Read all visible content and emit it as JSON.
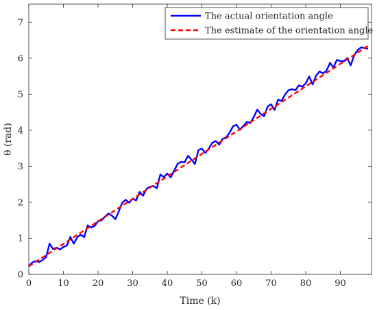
{
  "chart_data": {
    "type": "line",
    "title": "",
    "xlabel": "Time (k)",
    "ylabel": "θ (rad)",
    "xlim": [
      0,
      99
    ],
    "ylim": [
      0,
      7.5
    ],
    "xticks": [
      0,
      10,
      20,
      30,
      40,
      50,
      60,
      70,
      80,
      90
    ],
    "yticks": [
      0,
      1,
      2,
      3,
      4,
      5,
      6,
      7
    ],
    "grid": false,
    "legend_position": "top-right",
    "series": [
      {
        "name": "The actual orientation angle",
        "color": "#0000ff",
        "style": "solid",
        "x": [
          0,
          1,
          2,
          3,
          4,
          5,
          6,
          7,
          8,
          9,
          10,
          11,
          12,
          13,
          14,
          15,
          16,
          17,
          18,
          19,
          20,
          21,
          22,
          23,
          24,
          25,
          26,
          27,
          28,
          29,
          30,
          31,
          32,
          33,
          34,
          35,
          36,
          37,
          38,
          39,
          40,
          41,
          42,
          43,
          44,
          45,
          46,
          47,
          48,
          49,
          50,
          51,
          52,
          53,
          54,
          55,
          56,
          57,
          58,
          59,
          60,
          61,
          62,
          63,
          64,
          65,
          66,
          67,
          68,
          69,
          70,
          71,
          72,
          73,
          74,
          75,
          76,
          77,
          78,
          79,
          80,
          81,
          82,
          83,
          84,
          85,
          86,
          87,
          88,
          89,
          90,
          91,
          92,
          93,
          94,
          95,
          96,
          97,
          98
        ],
        "y": [
          0.22,
          0.33,
          0.37,
          0.34,
          0.4,
          0.48,
          0.85,
          0.7,
          0.74,
          0.69,
          0.76,
          0.8,
          1.04,
          0.85,
          1.03,
          1.1,
          1.03,
          1.36,
          1.3,
          1.34,
          1.47,
          1.5,
          1.6,
          1.69,
          1.63,
          1.53,
          1.75,
          1.99,
          2.07,
          1.99,
          2.1,
          2.05,
          2.29,
          2.18,
          2.37,
          2.43,
          2.45,
          2.39,
          2.77,
          2.7,
          2.8,
          2.69,
          2.88,
          3.07,
          3.12,
          3.11,
          3.29,
          3.18,
          3.06,
          3.45,
          3.49,
          3.37,
          3.49,
          3.65,
          3.7,
          3.6,
          3.76,
          3.8,
          3.93,
          4.11,
          4.15,
          4.01,
          4.12,
          4.23,
          4.2,
          4.37,
          4.57,
          4.45,
          4.39,
          4.66,
          4.72,
          4.56,
          4.85,
          4.81,
          4.99,
          5.11,
          5.14,
          5.11,
          5.24,
          5.21,
          5.3,
          5.49,
          5.27,
          5.52,
          5.63,
          5.58,
          5.65,
          5.87,
          5.74,
          5.95,
          5.92,
          5.91,
          6.0,
          5.8,
          6.08,
          6.22,
          6.3,
          6.28,
          6.26
        ]
      },
      {
        "name": "The estimate of the orientation angle",
        "color": "#ff0000",
        "style": "dashed",
        "x": [
          0,
          98
        ],
        "y": [
          0.22,
          6.34
        ]
      }
    ]
  }
}
